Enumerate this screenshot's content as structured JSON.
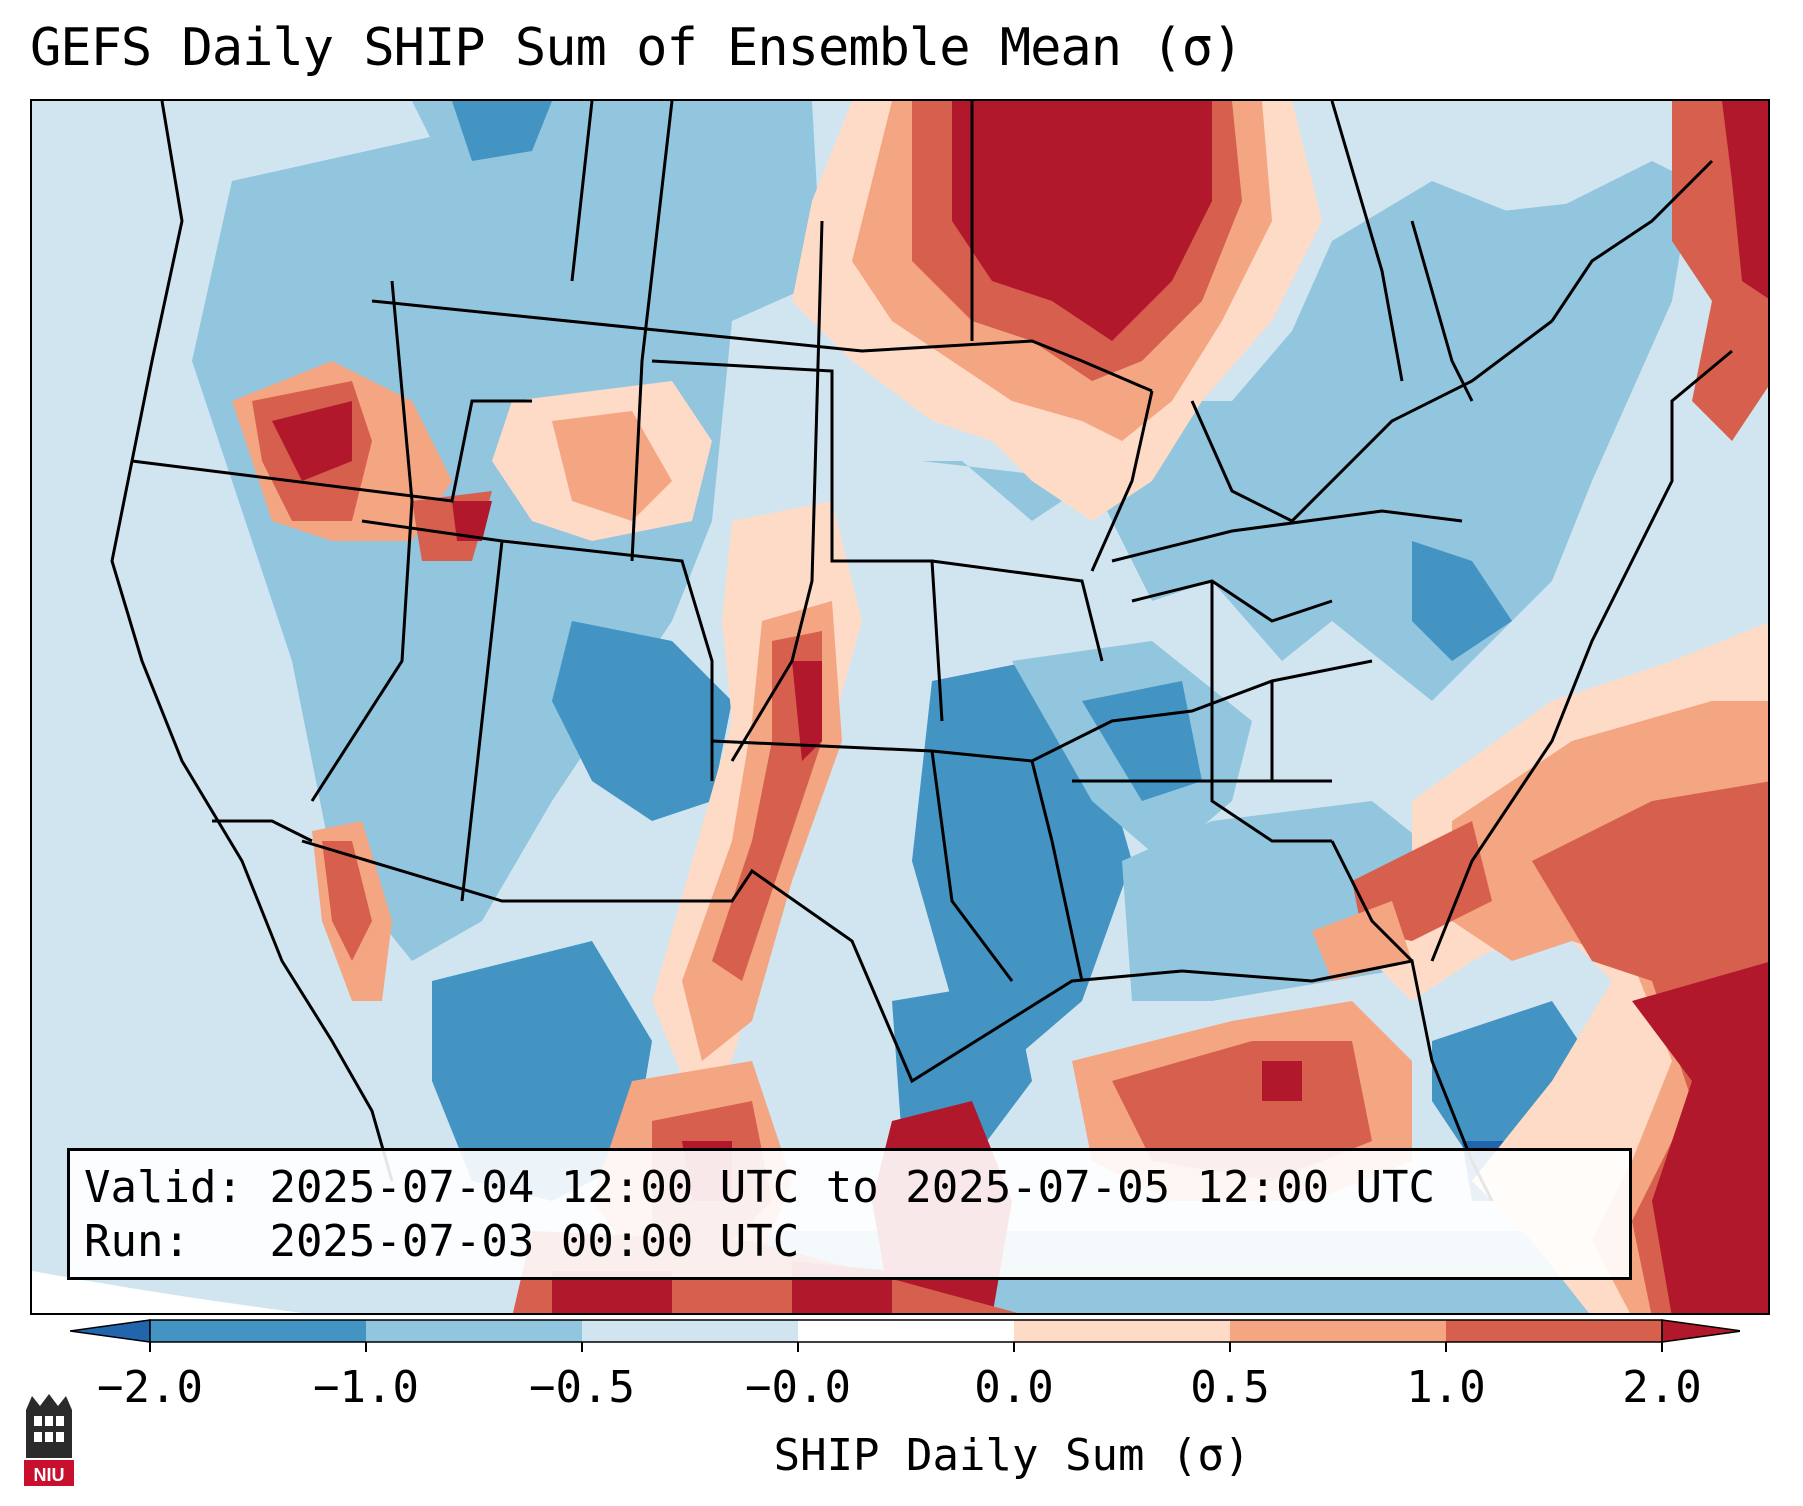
{
  "title": "GEFS Daily SHIP Sum of Ensemble Mean (σ)",
  "info": {
    "valid_label": "Valid:",
    "valid_value": "2025-07-04 12:00 UTC to 2025-07-05 12:00 UTC",
    "run_label": "Run:",
    "run_value": "2025-07-03 00:00 UTC"
  },
  "colorbar": {
    "label": "SHIP Daily Sum (σ)",
    "ticks": [
      "−2.0",
      "−1.0",
      "−0.5",
      "−0.0",
      "0.0",
      "0.5",
      "1.0",
      "2.0"
    ],
    "colors": [
      "#2166ac",
      "#4393c3",
      "#92c5de",
      "#d1e5f0",
      "#ffffff",
      "#fddbc7",
      "#f4a582",
      "#d6604d",
      "#b2182b"
    ],
    "extend": "both"
  },
  "map": {
    "region": "CONUS",
    "projection": "lambert-conformal",
    "colors": {
      "strong_neg": "#4393c3",
      "neg": "#92c5de",
      "weak_neg": "#d1e5f0",
      "weak_pos": "#fddbc7",
      "pos": "#f4a582",
      "strong_pos": "#d6604d",
      "very_strong_pos": "#b2182b",
      "deep_neg": "#2166ac"
    }
  },
  "logo": {
    "text": "NIU"
  }
}
